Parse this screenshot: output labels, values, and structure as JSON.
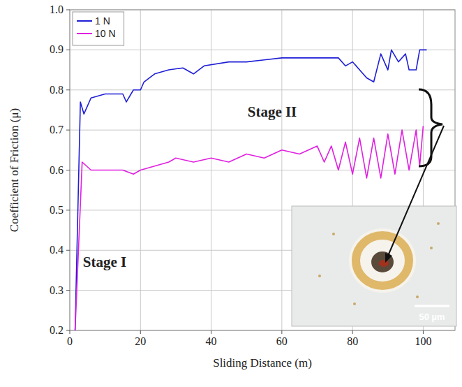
{
  "chart_data": {
    "type": "line",
    "x_label": "Sliding Distance (m)",
    "y_label": "Coefficient of Friction (μ)",
    "xlim": [
      0,
      109
    ],
    "ylim": [
      0.2,
      1.0
    ],
    "xticks": [
      0,
      20,
      40,
      60,
      80,
      100
    ],
    "yticks": [
      0.2,
      0.3,
      0.4,
      0.5,
      0.6,
      0.7,
      0.8,
      0.9,
      {
        "value": 1,
        "label": "1.0"
      }
    ],
    "grid": true,
    "legend": "upper left",
    "series": [
      {
        "name": "1 N",
        "color": "#1f1fd6",
        "x": [
          1.5,
          3,
          4,
          6,
          10,
          15,
          16,
          18,
          20,
          21,
          24,
          28,
          32,
          35,
          38,
          45,
          50,
          55,
          60,
          70,
          76,
          78,
          80,
          84,
          86,
          88,
          90,
          91,
          93,
          95,
          96,
          98,
          99,
          101
        ],
        "values": [
          0.2,
          0.77,
          0.74,
          0.78,
          0.79,
          0.79,
          0.77,
          0.8,
          0.8,
          0.82,
          0.84,
          0.85,
          0.855,
          0.84,
          0.86,
          0.87,
          0.87,
          0.875,
          0.88,
          0.88,
          0.88,
          0.86,
          0.87,
          0.83,
          0.82,
          0.89,
          0.85,
          0.9,
          0.87,
          0.89,
          0.85,
          0.85,
          0.9,
          0.9
        ]
      },
      {
        "name": "10 N",
        "color": "#e020e0",
        "x": [
          1.5,
          3.5,
          6,
          10,
          15,
          18,
          20,
          24,
          28,
          30,
          35,
          40,
          45,
          50,
          55,
          60,
          65,
          70,
          72,
          74,
          76,
          78,
          80,
          82,
          84,
          86,
          88,
          90,
          92,
          94,
          96,
          98,
          99,
          100
        ],
        "values": [
          0.2,
          0.62,
          0.6,
          0.6,
          0.6,
          0.59,
          0.6,
          0.61,
          0.62,
          0.63,
          0.62,
          0.63,
          0.62,
          0.64,
          0.63,
          0.65,
          0.64,
          0.66,
          0.62,
          0.66,
          0.6,
          0.67,
          0.59,
          0.68,
          0.58,
          0.68,
          0.58,
          0.69,
          0.59,
          0.7,
          0.6,
          0.7,
          0.61,
          0.71
        ]
      }
    ],
    "annotations": [
      "Stage I",
      "Stage II"
    ],
    "inset_scale_label": "50 µm"
  }
}
